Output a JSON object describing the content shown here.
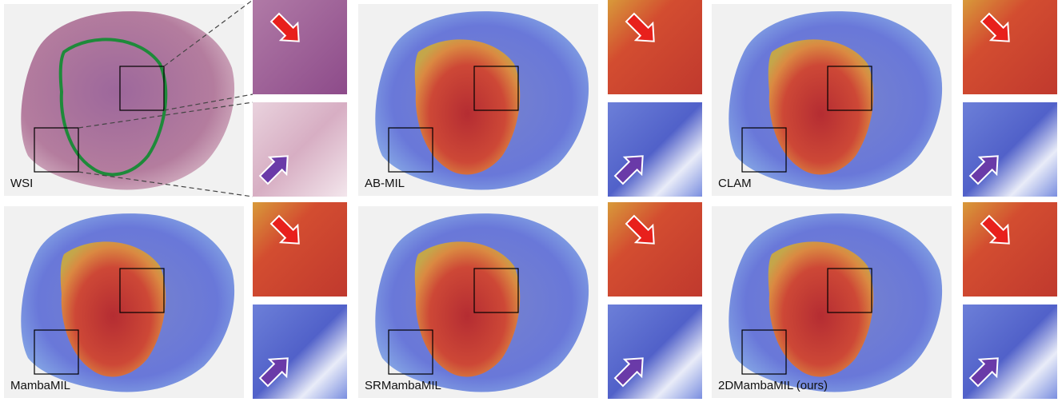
{
  "panels": [
    {
      "label": "WSI"
    },
    {
      "label": "AB-MIL"
    },
    {
      "label": "CLAM"
    },
    {
      "label": "MambaMIL"
    },
    {
      "label": "SRMambaMIL"
    },
    {
      "label": "2DMambaMIL (ours)"
    }
  ]
}
